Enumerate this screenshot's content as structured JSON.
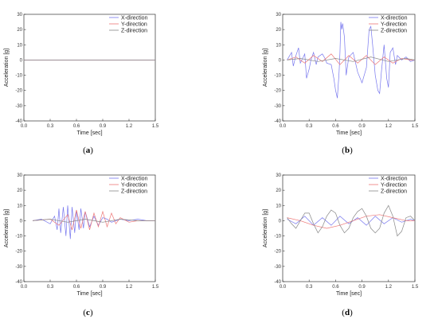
{
  "figure": {
    "captions": [
      "a",
      "b",
      "c",
      "d"
    ]
  },
  "chart_data": [
    {
      "type": "line",
      "panel": "a",
      "xlabel": "Time [sec]",
      "ylabel": "Acceleration [g]",
      "xlim": [
        0,
        1.5
      ],
      "ylim": [
        -40,
        30
      ],
      "xticks": [
        "0.0",
        "0.3",
        "0.6",
        "0.9",
        "1.2",
        "1.5"
      ],
      "yticks": [
        "-40",
        "-30",
        "-20",
        "-10",
        "0",
        "10",
        "20",
        "30"
      ],
      "legend": {
        "position": "top-right",
        "entries": [
          "X-direction",
          "Y-direction",
          "Z-direction"
        ]
      },
      "series": [
        {
          "name": "X-direction",
          "color": "#7777ee",
          "x": [
            0,
            1.5
          ],
          "y": [
            0,
            0
          ]
        },
        {
          "name": "Y-direction",
          "color": "#ee7777",
          "x": [
            0,
            1.5
          ],
          "y": [
            0,
            0
          ]
        },
        {
          "name": "Z-direction",
          "color": "#888888",
          "x": [
            0,
            1.5
          ],
          "y": [
            0,
            0
          ]
        }
      ]
    },
    {
      "type": "line",
      "panel": "b",
      "xlabel": "Time [sec]",
      "ylabel": "Acceleration [g]",
      "xlim": [
        0,
        1.5
      ],
      "ylim": [
        -40,
        30
      ],
      "xticks": [
        "0.0",
        "0.3",
        "0.6",
        "0.9",
        "1.2",
        "1.5"
      ],
      "yticks": [
        "-40",
        "-30",
        "-20",
        "-10",
        "0",
        "10",
        "20",
        "30"
      ],
      "legend": {
        "position": "top-right",
        "entries": [
          "X-direction",
          "Y-direction",
          "Z-direction"
        ]
      },
      "series": [
        {
          "name": "X-direction",
          "color": "#7777ee",
          "x": [
            0.05,
            0.1,
            0.12,
            0.15,
            0.18,
            0.2,
            0.25,
            0.27,
            0.3,
            0.32,
            0.35,
            0.38,
            0.4,
            0.45,
            0.48,
            0.5,
            0.55,
            0.58,
            0.6,
            0.62,
            0.64,
            0.65,
            0.66,
            0.67,
            0.68,
            0.7,
            0.72,
            0.75,
            0.8,
            0.85,
            0.9,
            0.95,
            0.98,
            1.0,
            1.02,
            1.05,
            1.08,
            1.1,
            1.12,
            1.15,
            1.18,
            1.2,
            1.22,
            1.25,
            1.28,
            1.3,
            1.35,
            1.4,
            1.45,
            1.5
          ],
          "y": [
            0,
            5,
            -4,
            3,
            8,
            -2,
            4,
            -12,
            -6,
            0,
            5,
            -3,
            2,
            4,
            1,
            -2,
            -3,
            -12,
            -20,
            -25,
            -8,
            5,
            25,
            20,
            24,
            15,
            -10,
            2,
            5,
            -8,
            -15,
            -5,
            20,
            22,
            10,
            -10,
            -20,
            -22,
            -8,
            10,
            -12,
            -18,
            5,
            8,
            -3,
            3,
            0,
            2,
            -1,
            0
          ]
        },
        {
          "name": "Y-direction",
          "color": "#ee7777",
          "x": [
            0.05,
            0.15,
            0.25,
            0.35,
            0.45,
            0.55,
            0.65,
            0.75,
            0.85,
            0.95,
            1.05,
            1.15,
            1.25,
            1.35,
            1.45,
            1.5
          ],
          "y": [
            0,
            2,
            -2,
            3,
            -1,
            4,
            -3,
            3,
            -2,
            3,
            -3,
            2,
            -2,
            1,
            0,
            0
          ]
        },
        {
          "name": "Z-direction",
          "color": "#888888",
          "x": [
            0.05,
            0.2,
            0.4,
            0.6,
            0.8,
            1.0,
            1.2,
            1.4,
            1.5
          ],
          "y": [
            0,
            1,
            -1,
            1,
            -1,
            2,
            -1,
            1,
            0
          ]
        }
      ]
    },
    {
      "type": "line",
      "panel": "c",
      "xlabel": "Time [sec]",
      "ylabel": "Acceleration [g]",
      "xlim": [
        0,
        1.5
      ],
      "ylim": [
        -40,
        30
      ],
      "xticks": [
        "0.0",
        "0.3",
        "0.6",
        "0.9",
        "1.2",
        "1.5"
      ],
      "yticks": [
        "-40",
        "-30",
        "-20",
        "-10",
        "0",
        "10",
        "20",
        "30"
      ],
      "legend": {
        "position": "top-right",
        "entries": [
          "X-direction",
          "Y-direction",
          "Z-direction"
        ]
      },
      "series": [
        {
          "name": "X-direction",
          "color": "#7777ee",
          "x": [
            0.1,
            0.2,
            0.3,
            0.35,
            0.38,
            0.4,
            0.42,
            0.45,
            0.48,
            0.5,
            0.53,
            0.55,
            0.58,
            0.6,
            0.63,
            0.65,
            0.68,
            0.7,
            0.75,
            0.8,
            0.85,
            0.9,
            0.95,
            1.0,
            1.1,
            1.2,
            1.3,
            1.4,
            1.5
          ],
          "y": [
            0,
            1,
            -2,
            3,
            -6,
            8,
            -8,
            9,
            -10,
            10,
            -12,
            9,
            -8,
            7,
            -6,
            8,
            -5,
            6,
            -4,
            3,
            -3,
            2,
            1,
            -1,
            1,
            0,
            1,
            0,
            0
          ]
        },
        {
          "name": "Y-direction",
          "color": "#ee7777",
          "x": [
            0.1,
            0.3,
            0.4,
            0.5,
            0.55,
            0.6,
            0.65,
            0.7,
            0.75,
            0.8,
            0.85,
            0.9,
            0.95,
            1.0,
            1.05,
            1.1,
            1.2,
            1.3,
            1.4,
            1.5
          ],
          "y": [
            0,
            1,
            -3,
            4,
            -6,
            7,
            -5,
            6,
            -6,
            5,
            -4,
            6,
            -4,
            5,
            -2,
            2,
            -1,
            0,
            0,
            0
          ]
        },
        {
          "name": "Z-direction",
          "color": "#888888",
          "x": [
            0.1,
            0.3,
            0.5,
            0.7,
            0.9,
            1.1,
            1.3,
            1.5
          ],
          "y": [
            0,
            1,
            -1,
            1,
            -1,
            1,
            0,
            0
          ]
        }
      ]
    },
    {
      "type": "line",
      "panel": "d",
      "xlabel": "Time [sec]",
      "ylabel": "Acceleration [g]",
      "xlim": [
        0,
        1.5
      ],
      "ylim": [
        -40,
        30
      ],
      "xticks": [
        "0.0",
        "0.3",
        "0.6",
        "0.9",
        "1.2",
        "1.5"
      ],
      "yticks": [
        "-40",
        "-30",
        "-20",
        "-10",
        "0",
        "10",
        "20",
        "30"
      ],
      "legend": {
        "position": "top-right",
        "entries": [
          "X-direction",
          "Y-direction",
          "Z-direction"
        ]
      },
      "series": [
        {
          "name": "X-direction",
          "color": "#7777ee",
          "x": [
            0.05,
            0.15,
            0.25,
            0.35,
            0.45,
            0.55,
            0.65,
            0.75,
            0.85,
            0.95,
            1.05,
            1.15,
            1.25,
            1.35,
            1.45,
            1.5
          ],
          "y": [
            1,
            -2,
            3,
            -3,
            2,
            -3,
            3,
            -2,
            2,
            -3,
            3,
            -2,
            2,
            -1,
            1,
            0
          ]
        },
        {
          "name": "Y-direction",
          "color": "#ee7777",
          "x": [
            0.05,
            0.2,
            0.35,
            0.5,
            0.65,
            0.8,
            0.95,
            1.1,
            1.25,
            1.4,
            1.5
          ],
          "y": [
            2,
            0,
            -3,
            -5,
            -3,
            0,
            3,
            4,
            2,
            0,
            0
          ]
        },
        {
          "name": "Z-direction",
          "color": "#888888",
          "x": [
            0.05,
            0.1,
            0.15,
            0.2,
            0.25,
            0.3,
            0.35,
            0.4,
            0.45,
            0.5,
            0.55,
            0.6,
            0.65,
            0.7,
            0.75,
            0.8,
            0.85,
            0.9,
            0.95,
            1.0,
            1.05,
            1.1,
            1.15,
            1.2,
            1.25,
            1.3,
            1.35,
            1.4,
            1.45,
            1.5
          ],
          "y": [
            2,
            -2,
            -5,
            0,
            5,
            5,
            -2,
            -8,
            -4,
            3,
            7,
            5,
            -3,
            -8,
            -5,
            2,
            6,
            8,
            3,
            -5,
            -8,
            -5,
            5,
            10,
            3,
            -10,
            -7,
            2,
            3,
            0
          ]
        }
      ]
    }
  ]
}
